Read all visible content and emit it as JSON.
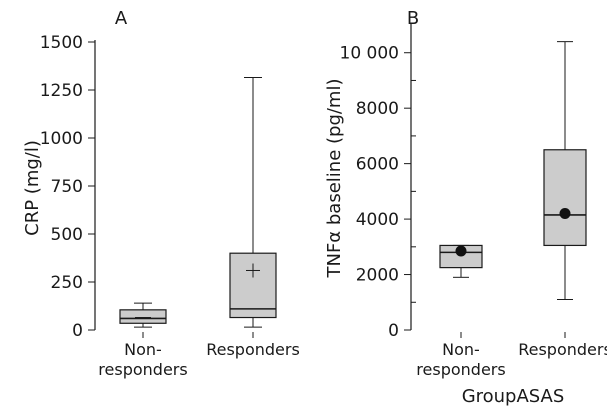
{
  "chart_data": [
    {
      "type": "box",
      "panel_label": "A",
      "title": "",
      "xlabel": "",
      "ylabel": "CRP (mg/l)",
      "ylim": [
        0,
        1500
      ],
      "yticks": [
        "0",
        "250",
        "500",
        "750",
        "1000",
        "1250",
        "1500"
      ],
      "ytick_values": [
        0,
        250,
        500,
        750,
        1000,
        1250,
        1500
      ],
      "categories": [
        {
          "line1": "Non-",
          "line2": "responders"
        },
        {
          "line1": "Responders",
          "line2": ""
        }
      ],
      "boxes": [
        {
          "min": 15,
          "q1": 35,
          "median": 60,
          "q3": 105,
          "max": 140,
          "mean": 65,
          "mean_marker": "line"
        },
        {
          "min": 15,
          "q1": 65,
          "median": 110,
          "q3": 400,
          "max": 1315,
          "mean": 310,
          "mean_marker": "plus"
        }
      ],
      "grid": false
    },
    {
      "type": "box",
      "panel_label": "B",
      "title": "",
      "xlabel": "GroupASAS",
      "ylabel": "TNFα baseline (pg/ml)",
      "ylim": [
        0,
        11000
      ],
      "yticks": [
        "0",
        "2000",
        "4000",
        "6000",
        "8000",
        "10 000"
      ],
      "ytick_values": [
        0,
        2000,
        4000,
        6000,
        8000,
        10000
      ],
      "minor_ytick_values": [
        1000,
        3000,
        5000,
        7000,
        9000
      ],
      "categories": [
        {
          "line1": "Non-",
          "line2": "responders"
        },
        {
          "line1": "Responders",
          "line2": ""
        }
      ],
      "boxes": [
        {
          "min": 1900,
          "q1": 2250,
          "median": 2800,
          "q3": 3050,
          "max": 3050,
          "mean": 2850,
          "mean_marker": "dot"
        },
        {
          "min": 1100,
          "q1": 3050,
          "median": 4150,
          "q3": 6500,
          "max": 10400,
          "mean": 4200,
          "mean_marker": "dot"
        }
      ],
      "grid": false
    }
  ]
}
